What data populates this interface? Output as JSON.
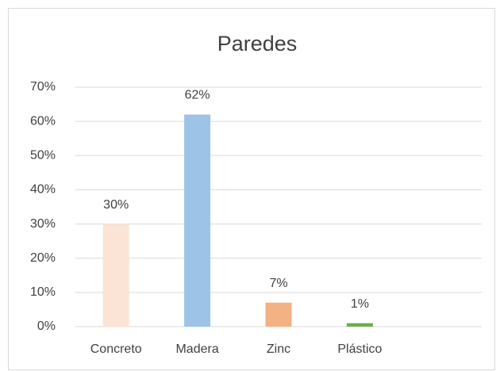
{
  "chart_data": {
    "type": "bar",
    "title": "Paredes",
    "categories": [
      "Concreto",
      "Madera",
      "Zinc",
      "Plástico",
      null
    ],
    "values": [
      30,
      62,
      7,
      1,
      null
    ],
    "value_labels": [
      "30%",
      "62%",
      "7%",
      "1%",
      null
    ],
    "colors": [
      "#fbe3d6",
      "#9dc3e6",
      "#f4b183",
      "#70ad47",
      null
    ],
    "ylim": [
      0,
      70
    ],
    "yticks": [
      {
        "value": 0,
        "label": "0%"
      },
      {
        "value": 10,
        "label": "10%"
      },
      {
        "value": 20,
        "label": "20%"
      },
      {
        "value": 30,
        "label": "30%"
      },
      {
        "value": 40,
        "label": "40%"
      },
      {
        "value": 50,
        "label": "50%"
      },
      {
        "value": 60,
        "label": "60%"
      },
      {
        "value": 70,
        "label": "70%"
      }
    ],
    "grid": true
  }
}
